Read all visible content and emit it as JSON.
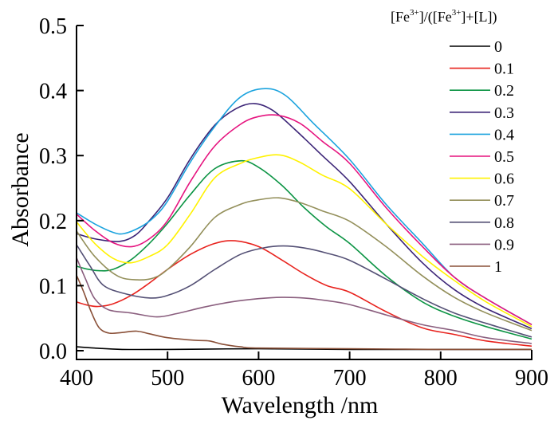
{
  "chart_data": {
    "type": "line",
    "title": "",
    "xlabel": "Wavelength /nm",
    "ylabel": "Absorbance",
    "xlim": [
      400,
      900
    ],
    "ylim": [
      -0.01,
      0.5
    ],
    "xticks": [
      400,
      500,
      600,
      700,
      800,
      900
    ],
    "yticks": [
      0.0,
      0.1,
      0.2,
      0.3,
      0.4,
      0.5
    ],
    "xtick_labels": [
      "400",
      "500",
      "600",
      "700",
      "800",
      "900"
    ],
    "ytick_labels": [
      "0.0",
      "0.1",
      "0.2",
      "0.3",
      "0.4",
      "0.5"
    ],
    "grid": false,
    "legend": {
      "placement": "top-right",
      "title_parts": [
        "[Fe",
        "3+",
        "]/([Fe",
        "3+",
        "]+[L])"
      ]
    },
    "series": [
      {
        "name": "0",
        "color": "#000000",
        "points": [
          [
            400,
            0.006
          ],
          [
            420,
            0.004
          ],
          [
            450,
            0.002
          ],
          [
            500,
            0.002
          ],
          [
            600,
            0.003
          ],
          [
            700,
            0.002
          ],
          [
            800,
            0.002
          ],
          [
            900,
            0.002
          ]
        ]
      },
      {
        "name": "0.1",
        "color": "#e8231e",
        "points": [
          [
            400,
            0.075
          ],
          [
            412,
            0.07
          ],
          [
            424,
            0.068
          ],
          [
            440,
            0.072
          ],
          [
            460,
            0.085
          ],
          [
            480,
            0.104
          ],
          [
            500,
            0.125
          ],
          [
            525,
            0.148
          ],
          [
            552,
            0.165
          ],
          [
            574,
            0.169
          ],
          [
            600,
            0.16
          ],
          [
            625,
            0.14
          ],
          [
            650,
            0.118
          ],
          [
            675,
            0.1
          ],
          [
            700,
            0.09
          ],
          [
            740,
            0.06
          ],
          [
            780,
            0.035
          ],
          [
            815,
            0.025
          ],
          [
            850,
            0.015
          ],
          [
            900,
            0.007
          ]
        ]
      },
      {
        "name": "0.2",
        "color": "#0c9444",
        "points": [
          [
            400,
            0.13
          ],
          [
            410,
            0.126
          ],
          [
            424,
            0.123
          ],
          [
            440,
            0.125
          ],
          [
            460,
            0.14
          ],
          [
            480,
            0.165
          ],
          [
            500,
            0.196
          ],
          [
            525,
            0.24
          ],
          [
            552,
            0.28
          ],
          [
            581,
            0.292
          ],
          [
            600,
            0.282
          ],
          [
            625,
            0.255
          ],
          [
            650,
            0.22
          ],
          [
            675,
            0.19
          ],
          [
            700,
            0.165
          ],
          [
            740,
            0.115
          ],
          [
            780,
            0.075
          ],
          [
            815,
            0.053
          ],
          [
            850,
            0.037
          ],
          [
            900,
            0.018
          ]
        ]
      },
      {
        "name": "0.3",
        "color": "#3c2577",
        "points": [
          [
            400,
            0.18
          ],
          [
            420,
            0.172
          ],
          [
            447,
            0.168
          ],
          [
            465,
            0.178
          ],
          [
            480,
            0.2
          ],
          [
            500,
            0.235
          ],
          [
            525,
            0.295
          ],
          [
            552,
            0.347
          ],
          [
            575,
            0.372
          ],
          [
            595,
            0.38
          ],
          [
            615,
            0.37
          ],
          [
            640,
            0.34
          ],
          [
            670,
            0.3
          ],
          [
            700,
            0.26
          ],
          [
            740,
            0.195
          ],
          [
            780,
            0.135
          ],
          [
            815,
            0.094
          ],
          [
            850,
            0.065
          ],
          [
            900,
            0.034
          ]
        ]
      },
      {
        "name": "0.4",
        "color": "#1ba3de",
        "points": [
          [
            400,
            0.212
          ],
          [
            420,
            0.195
          ],
          [
            440,
            0.182
          ],
          [
            452,
            0.18
          ],
          [
            470,
            0.19
          ],
          [
            485,
            0.205
          ],
          [
            500,
            0.23
          ],
          [
            525,
            0.29
          ],
          [
            552,
            0.345
          ],
          [
            580,
            0.39
          ],
          [
            607,
            0.403
          ],
          [
            630,
            0.392
          ],
          [
            660,
            0.35
          ],
          [
            700,
            0.294
          ],
          [
            740,
            0.225
          ],
          [
            780,
            0.165
          ],
          [
            815,
            0.113
          ],
          [
            850,
            0.08
          ],
          [
            900,
            0.04
          ]
        ]
      },
      {
        "name": "0.5",
        "color": "#e6147f",
        "points": [
          [
            400,
            0.21
          ],
          [
            420,
            0.185
          ],
          [
            440,
            0.166
          ],
          [
            461,
            0.16
          ],
          [
            480,
            0.172
          ],
          [
            500,
            0.2
          ],
          [
            525,
            0.26
          ],
          [
            552,
            0.315
          ],
          [
            580,
            0.348
          ],
          [
            600,
            0.36
          ],
          [
            621,
            0.362
          ],
          [
            645,
            0.35
          ],
          [
            670,
            0.322
          ],
          [
            700,
            0.288
          ],
          [
            740,
            0.22
          ],
          [
            780,
            0.16
          ],
          [
            815,
            0.113
          ],
          [
            850,
            0.08
          ],
          [
            900,
            0.04
          ]
        ]
      },
      {
        "name": "0.6",
        "color": "#fff200",
        "points": [
          [
            400,
            0.198
          ],
          [
            420,
            0.165
          ],
          [
            440,
            0.142
          ],
          [
            459,
            0.135
          ],
          [
            480,
            0.145
          ],
          [
            500,
            0.163
          ],
          [
            525,
            0.21
          ],
          [
            552,
            0.266
          ],
          [
            580,
            0.288
          ],
          [
            600,
            0.297
          ],
          [
            623,
            0.301
          ],
          [
            645,
            0.29
          ],
          [
            670,
            0.27
          ],
          [
            700,
            0.249
          ],
          [
            740,
            0.195
          ],
          [
            780,
            0.145
          ],
          [
            815,
            0.108
          ],
          [
            850,
            0.075
          ],
          [
            900,
            0.037
          ]
        ]
      },
      {
        "name": "0.7",
        "color": "#938f5a",
        "points": [
          [
            400,
            0.184
          ],
          [
            420,
            0.145
          ],
          [
            445,
            0.115
          ],
          [
            467,
            0.109
          ],
          [
            485,
            0.112
          ],
          [
            500,
            0.125
          ],
          [
            525,
            0.16
          ],
          [
            552,
            0.205
          ],
          [
            580,
            0.225
          ],
          [
            600,
            0.232
          ],
          [
            622,
            0.235
          ],
          [
            645,
            0.228
          ],
          [
            670,
            0.215
          ],
          [
            700,
            0.199
          ],
          [
            740,
            0.16
          ],
          [
            780,
            0.115
          ],
          [
            815,
            0.082
          ],
          [
            850,
            0.058
          ],
          [
            900,
            0.031
          ]
        ]
      },
      {
        "name": "0.8",
        "color": "#545075",
        "points": [
          [
            400,
            0.163
          ],
          [
            415,
            0.13
          ],
          [
            430,
            0.1
          ],
          [
            455,
            0.087
          ],
          [
            481,
            0.081
          ],
          [
            500,
            0.085
          ],
          [
            525,
            0.1
          ],
          [
            552,
            0.125
          ],
          [
            580,
            0.148
          ],
          [
            605,
            0.158
          ],
          [
            627,
            0.161
          ],
          [
            650,
            0.158
          ],
          [
            675,
            0.15
          ],
          [
            700,
            0.139
          ],
          [
            740,
            0.11
          ],
          [
            780,
            0.08
          ],
          [
            815,
            0.058
          ],
          [
            850,
            0.042
          ],
          [
            900,
            0.021
          ]
        ]
      },
      {
        "name": "0.9",
        "color": "#8a5e7e",
        "points": [
          [
            400,
            0.143
          ],
          [
            410,
            0.11
          ],
          [
            420,
            0.08
          ],
          [
            435,
            0.063
          ],
          [
            460,
            0.058
          ],
          [
            488,
            0.052
          ],
          [
            510,
            0.057
          ],
          [
            540,
            0.067
          ],
          [
            570,
            0.075
          ],
          [
            600,
            0.08
          ],
          [
            625,
            0.082
          ],
          [
            650,
            0.081
          ],
          [
            675,
            0.077
          ],
          [
            700,
            0.071
          ],
          [
            740,
            0.055
          ],
          [
            780,
            0.04
          ],
          [
            815,
            0.031
          ],
          [
            850,
            0.02
          ],
          [
            900,
            0.011
          ]
        ]
      },
      {
        "name": "1",
        "color": "#8a5038",
        "points": [
          [
            400,
            0.116
          ],
          [
            408,
            0.09
          ],
          [
            416,
            0.06
          ],
          [
            425,
            0.035
          ],
          [
            436,
            0.027
          ],
          [
            450,
            0.028
          ],
          [
            466,
            0.03
          ],
          [
            480,
            0.026
          ],
          [
            500,
            0.02
          ],
          [
            530,
            0.016
          ],
          [
            546,
            0.015
          ],
          [
            560,
            0.01
          ],
          [
            580,
            0.006
          ],
          [
            600,
            0.004
          ],
          [
            700,
            0.003
          ],
          [
            800,
            0.002
          ],
          [
            900,
            0.002
          ]
        ]
      }
    ]
  }
}
